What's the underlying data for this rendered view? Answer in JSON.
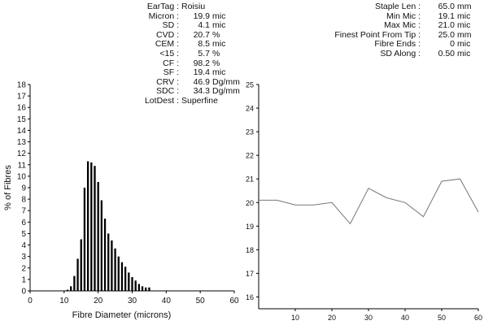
{
  "stats_left": [
    {
      "label": "EarTag",
      "value": "Roisiu",
      "unit": ""
    },
    {
      "label": "Micron",
      "value": "19.9",
      "unit": "mic"
    },
    {
      "label": "SD",
      "value": "4.1",
      "unit": "mic"
    },
    {
      "label": "CVD",
      "value": "20.7",
      "unit": "%"
    },
    {
      "label": "CEM",
      "value": "8.5",
      "unit": "mic"
    },
    {
      "label": "<15",
      "value": "5.7",
      "unit": "%"
    },
    {
      "label": "CF",
      "value": "98.2",
      "unit": "%"
    },
    {
      "label": "SF",
      "value": "19.4",
      "unit": "mic"
    },
    {
      "label": "CRV",
      "value": "46.9",
      "unit": "Dg/mm"
    },
    {
      "label": "SDC",
      "value": "34.3",
      "unit": "Dg/mm"
    },
    {
      "label": "LotDest",
      "value": "Superfine",
      "unit": ""
    }
  ],
  "stats_right": [
    {
      "label": "Staple Len",
      "value": "65.0",
      "unit": "mm"
    },
    {
      "label": "Min Mic",
      "value": "19.1",
      "unit": "mic"
    },
    {
      "label": "Max Mic",
      "value": "21.0",
      "unit": "mic"
    },
    {
      "label": "Finest Point From Tip",
      "value": "25.0",
      "unit": "mm"
    },
    {
      "label": "Fibre Ends",
      "value": "0",
      "unit": "mic"
    },
    {
      "label": "SD Along",
      "value": "0.50",
      "unit": "mic"
    }
  ],
  "chart_data": [
    {
      "type": "bar",
      "xlabel": "Fibre Diameter (microns)",
      "ylabel": "% of Fibres",
      "xlim": [
        0,
        60
      ],
      "ylim": [
        0,
        18
      ],
      "xticks": [
        0,
        10,
        20,
        30,
        40,
        50,
        60
      ],
      "yticks": [
        0,
        1,
        2,
        3,
        4,
        5,
        6,
        7,
        8,
        9,
        10,
        11,
        12,
        13,
        14,
        15,
        16,
        17,
        18
      ],
      "bar_color": "#000000",
      "x": [
        11,
        12,
        13,
        14,
        15,
        16,
        17,
        18,
        19,
        20,
        21,
        22,
        23,
        24,
        25,
        26,
        27,
        28,
        29,
        30,
        31,
        32,
        33,
        34,
        35
      ],
      "values": [
        0.1,
        0.4,
        1.3,
        2.8,
        4.5,
        9.0,
        11.3,
        11.2,
        10.9,
        9.5,
        7.9,
        6.3,
        5.0,
        4.4,
        3.7,
        3.0,
        2.5,
        2.1,
        1.6,
        1.2,
        0.9,
        0.6,
        0.4,
        0.3,
        0.3
      ]
    },
    {
      "type": "line",
      "xlim": [
        0,
        60
      ],
      "ylim": [
        15.5,
        25
      ],
      "xticks": [
        10,
        20,
        30,
        40,
        50,
        60
      ],
      "yticks": [
        16,
        17,
        18,
        19,
        20,
        21,
        22,
        23,
        24,
        25
      ],
      "line_color": "#777777",
      "x": [
        0,
        5,
        10,
        15,
        20,
        25,
        30,
        35,
        40,
        45,
        50,
        55,
        60
      ],
      "y": [
        20.1,
        20.1,
        19.9,
        19.9,
        20.0,
        19.1,
        20.6,
        20.2,
        20.0,
        19.4,
        20.9,
        21.0,
        19.6
      ]
    }
  ]
}
